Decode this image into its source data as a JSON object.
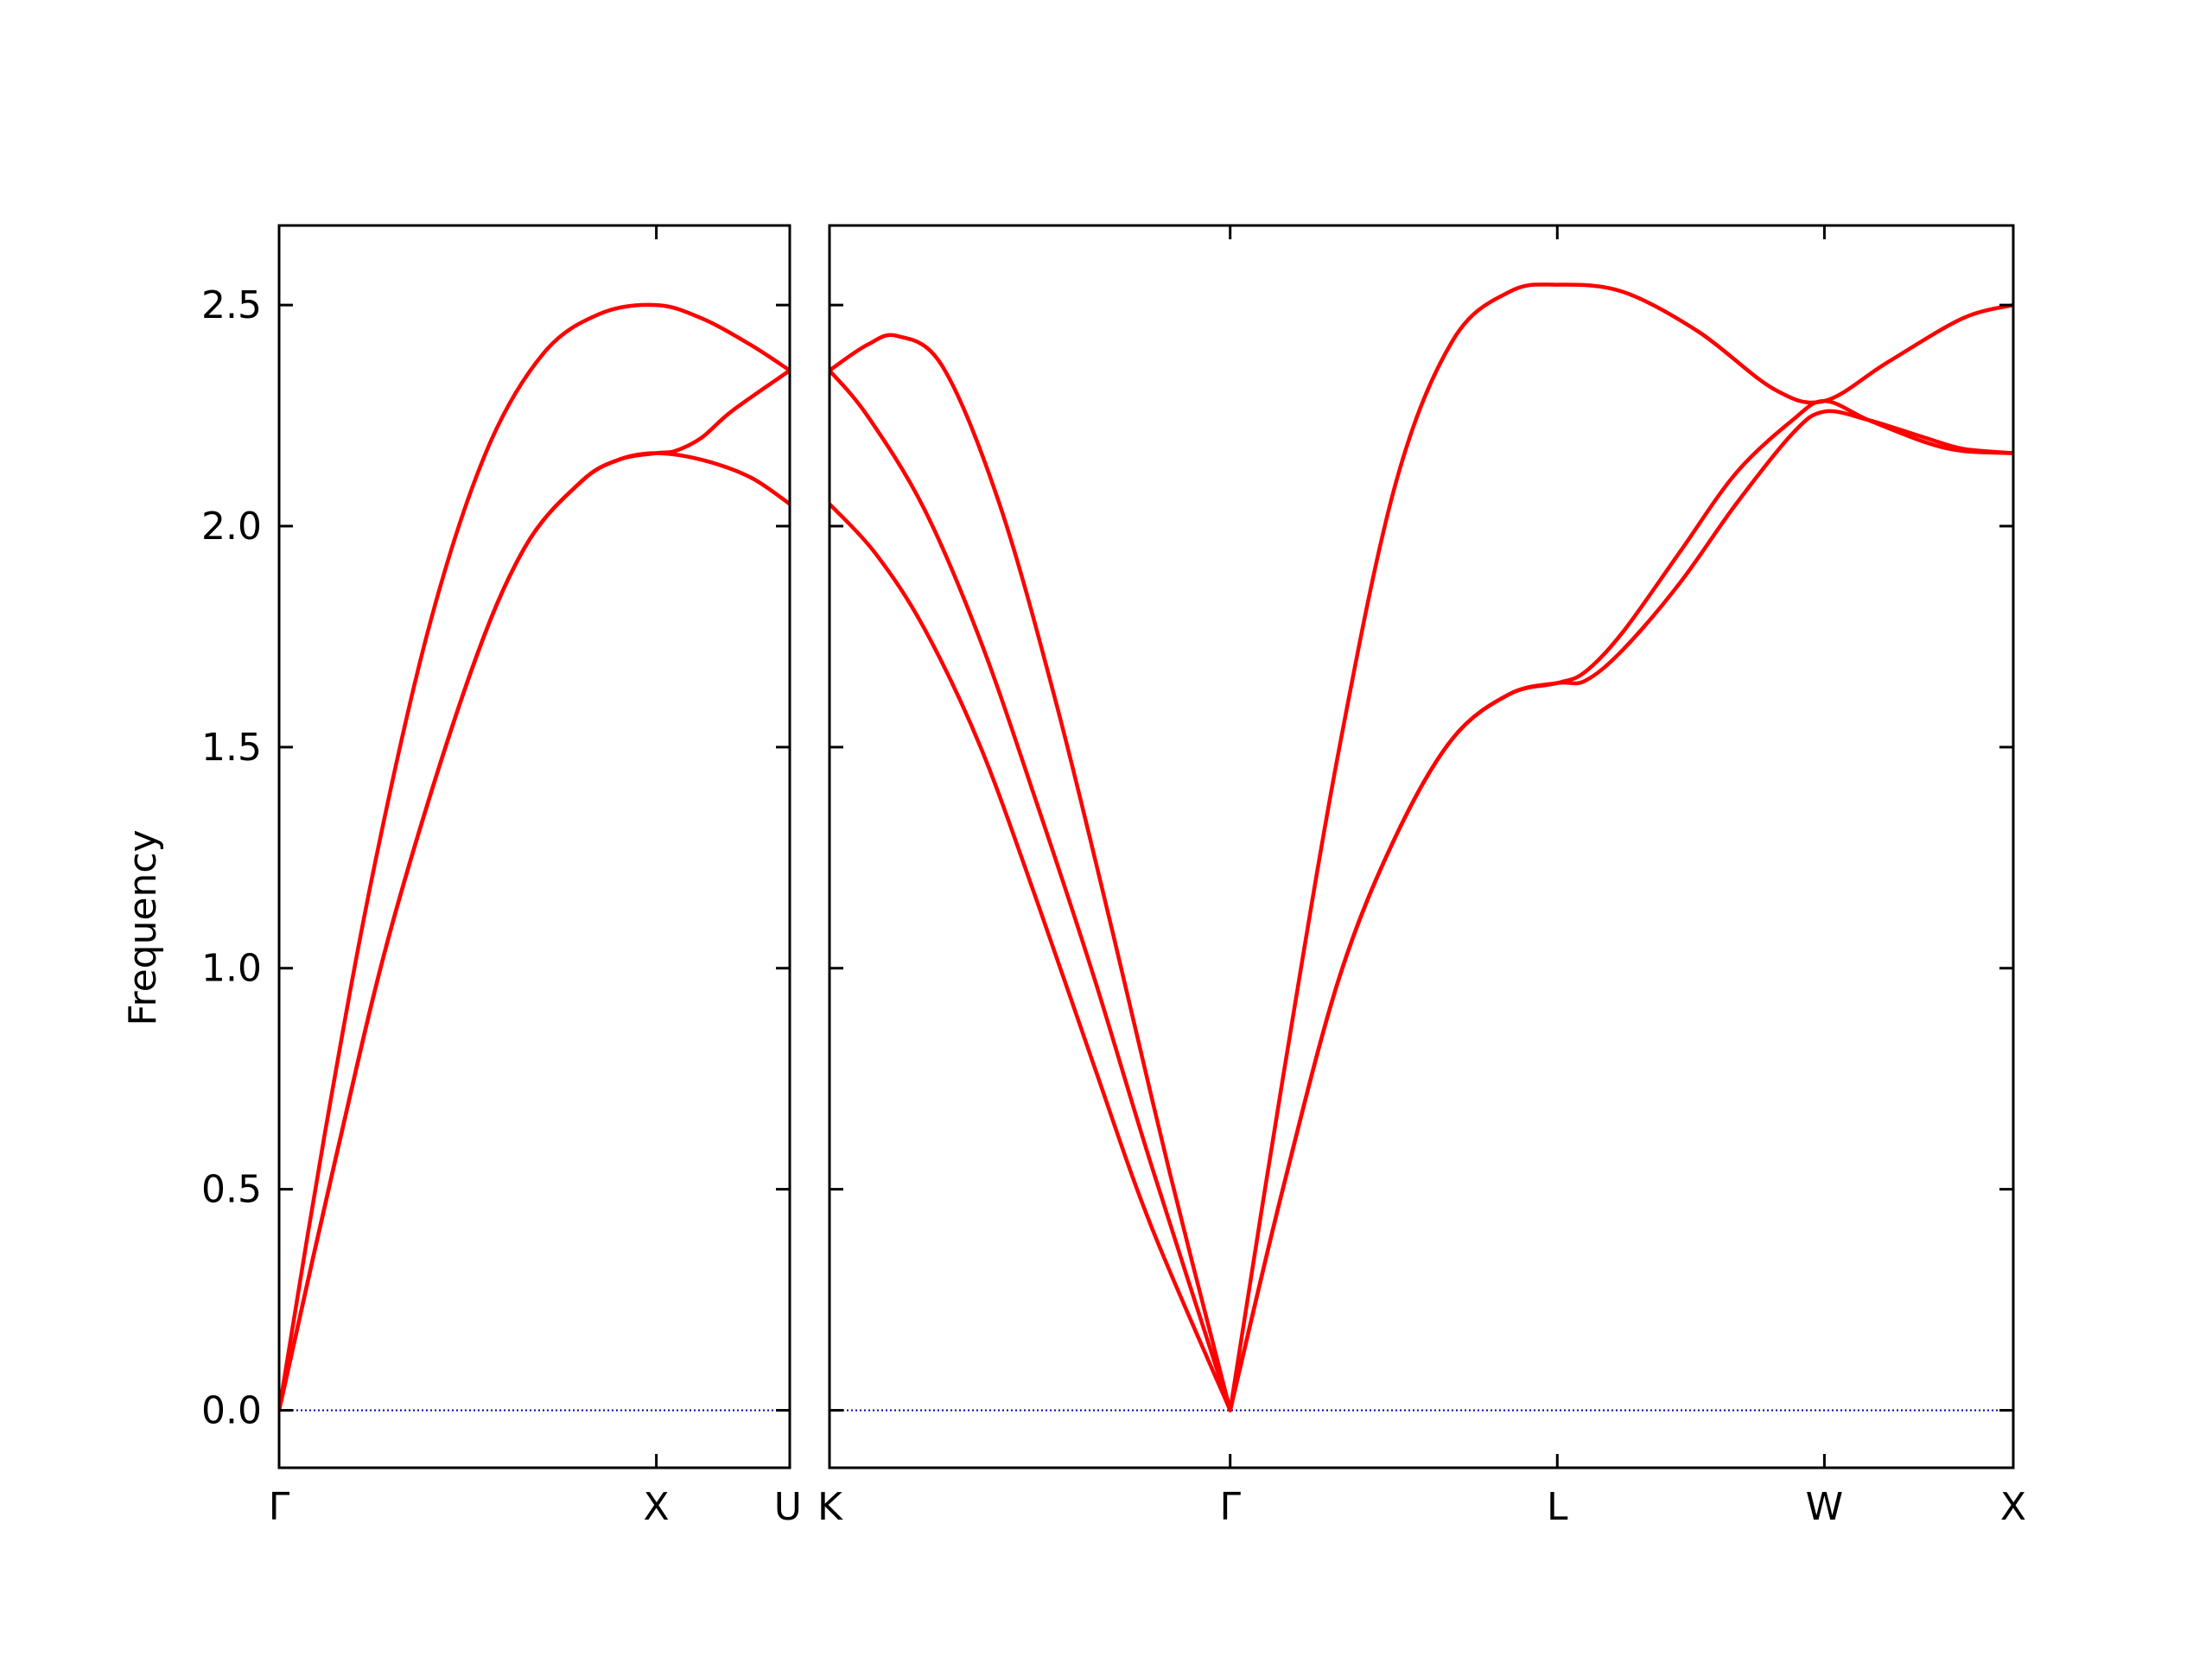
{
  "chart_data": {
    "type": "line",
    "ylabel": "Frequency",
    "ylim": [
      -0.13,
      2.68
    ],
    "yticks": [
      0.0,
      0.5,
      1.0,
      1.5,
      2.0,
      2.5
    ],
    "ytick_labels": [
      "0.0",
      "0.5",
      "1.0",
      "1.5",
      "2.0",
      "2.5"
    ],
    "grid": false,
    "line_color": "#ff0000",
    "zero_line_color": "#0000aa",
    "panels": [
      {
        "xticks": [
          {
            "label": "Γ",
            "x": 0.0
          },
          {
            "label": "X",
            "x": 1.0
          },
          {
            "label": "U",
            "x": 1.3536
          }
        ],
        "series": [
          {
            "values": [
              [
                0,
                0
              ],
              [
                0.12,
                0.62
              ],
              [
                0.25,
                1.22
              ],
              [
                0.4,
                1.78
              ],
              [
                0.55,
                2.17
              ],
              [
                0.7,
                2.39
              ],
              [
                0.85,
                2.48
              ],
              [
                1.0,
                2.5
              ],
              [
                1.12,
                2.47
              ],
              [
                1.25,
                2.41
              ],
              [
                1.3536,
                2.352
              ]
            ]
          },
          {
            "values": [
              [
                0,
                0
              ],
              [
                0.15,
                0.57
              ],
              [
                0.3,
                1.1
              ],
              [
                0.5,
                1.65
              ],
              [
                0.65,
                1.95
              ],
              [
                0.8,
                2.1
              ],
              [
                0.9,
                2.15
              ],
              [
                1.0,
                2.165
              ],
              [
                1.12,
                2.15
              ],
              [
                1.25,
                2.11
              ],
              [
                1.3536,
                2.05
              ]
            ]
          },
          {
            "values": [
              [
                0,
                0
              ],
              [
                0.15,
                0.57
              ],
              [
                0.3,
                1.1
              ],
              [
                0.5,
                1.65
              ],
              [
                0.65,
                1.95
              ],
              [
                0.8,
                2.1
              ],
              [
                0.9,
                2.15
              ],
              [
                1.0,
                2.165
              ],
              [
                1.05,
                2.17
              ],
              [
                1.12,
                2.2
              ],
              [
                1.2,
                2.26
              ],
              [
                1.3536,
                2.352
              ]
            ]
          }
        ]
      },
      {
        "xticks": [
          {
            "label": "K",
            "x": 0.0
          },
          {
            "label": "Γ",
            "x": 1.0607
          },
          {
            "label": "L",
            "x": 1.9267
          },
          {
            "label": "W",
            "x": 2.6338
          },
          {
            "label": "X",
            "x": 3.1338
          }
        ],
        "series": [
          {
            "values": [
              [
                0,
                2.352
              ],
              [
                0.1,
                2.41
              ],
              [
                0.18,
                2.43
              ],
              [
                0.3,
                2.36
              ],
              [
                0.45,
                2.05
              ],
              [
                0.6,
                1.6
              ],
              [
                0.75,
                1.08
              ],
              [
                0.9,
                0.54
              ],
              [
                1.0607,
                0
              ]
            ]
          },
          {
            "values": [
              [
                0,
                2.352
              ],
              [
                0.1,
                2.25
              ],
              [
                0.25,
                2.04
              ],
              [
                0.4,
                1.74
              ],
              [
                0.55,
                1.37
              ],
              [
                0.7,
                0.98
              ],
              [
                0.85,
                0.56
              ],
              [
                1.0607,
                0
              ]
            ]
          },
          {
            "values": [
              [
                0,
                2.05
              ],
              [
                0.12,
                1.94
              ],
              [
                0.25,
                1.77
              ],
              [
                0.4,
                1.5
              ],
              [
                0.55,
                1.15
              ],
              [
                0.7,
                0.78
              ],
              [
                0.85,
                0.42
              ],
              [
                1.0607,
                0
              ]
            ]
          },
          {
            "values": [
              [
                1.0607,
                0
              ],
              [
                1.2,
                0.75
              ],
              [
                1.35,
                1.5
              ],
              [
                1.5,
                2.1
              ],
              [
                1.65,
                2.42
              ],
              [
                1.8,
                2.53
              ],
              [
                1.9267,
                2.546
              ],
              [
                2.1,
                2.53
              ],
              [
                2.3,
                2.44
              ],
              [
                2.5,
                2.31
              ],
              [
                2.6338,
                2.283
              ],
              [
                2.8,
                2.37
              ],
              [
                3.0,
                2.47
              ],
              [
                3.1338,
                2.5
              ]
            ]
          },
          {
            "values": [
              [
                1.0607,
                0
              ],
              [
                1.2,
                0.5
              ],
              [
                1.35,
                0.98
              ],
              [
                1.5,
                1.3
              ],
              [
                1.65,
                1.52
              ],
              [
                1.8,
                1.62
              ],
              [
                1.9267,
                1.645
              ],
              [
                2.0,
                1.67
              ],
              [
                2.1,
                1.76
              ],
              [
                2.25,
                1.94
              ],
              [
                2.4,
                2.12
              ],
              [
                2.55,
                2.24
              ],
              [
                2.6338,
                2.283
              ],
              [
                2.75,
                2.24
              ],
              [
                2.9,
                2.19
              ],
              [
                3.0,
                2.17
              ],
              [
                3.1338,
                2.165
              ]
            ]
          },
          {
            "values": [
              [
                1.0607,
                0
              ],
              [
                1.2,
                0.5
              ],
              [
                1.35,
                0.98
              ],
              [
                1.5,
                1.3
              ],
              [
                1.65,
                1.52
              ],
              [
                1.8,
                1.62
              ],
              [
                1.9267,
                1.645
              ],
              [
                2.0,
                1.65
              ],
              [
                2.1,
                1.72
              ],
              [
                2.25,
                1.87
              ],
              [
                2.4,
                2.05
              ],
              [
                2.55,
                2.21
              ],
              [
                2.6338,
                2.259
              ],
              [
                2.75,
                2.24
              ],
              [
                2.9,
                2.2
              ],
              [
                3.0,
                2.175
              ],
              [
                3.1338,
                2.165
              ]
            ]
          }
        ]
      }
    ]
  }
}
